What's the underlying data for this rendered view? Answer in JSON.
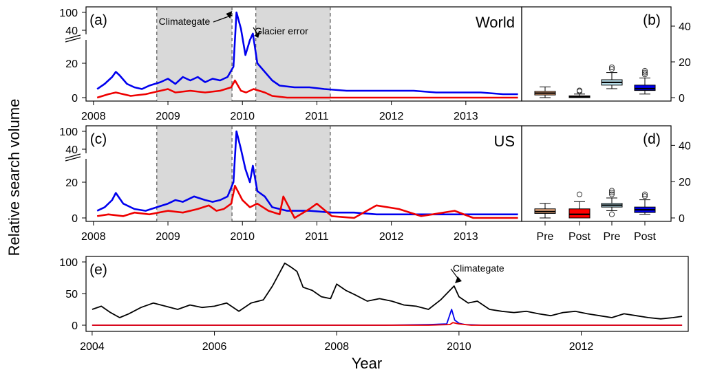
{
  "colors": {
    "world_blue": "#0000ee",
    "red": "#ee0000",
    "black": "#000000",
    "shade": "#d9d9d9",
    "pre_red": "#f4b183",
    "post_red": "#ff0000",
    "pre_blue": "#bde4f0",
    "post_blue": "#0000ee"
  },
  "figure": {
    "ylabel": "Relative search volume",
    "xlabel": "Year"
  },
  "chart_data": [
    {
      "id": "a",
      "panel_label": "(a)",
      "region": "World",
      "type": "line",
      "xlim": [
        2007.9,
        2013.75
      ],
      "ylim": [
        0,
        100
      ],
      "y_break": "axis break between 20 and 40",
      "x_ticks": [
        "2008",
        "2009",
        "2010",
        "2011",
        "2012",
        "2013"
      ],
      "y_ticks": [
        "0",
        "20",
        "40",
        "100"
      ],
      "shaded_periods": [
        [
          2008.85,
          2009.86
        ],
        [
          2010.18,
          2011.18
        ]
      ],
      "annotations": [
        {
          "text": "Climategate",
          "x": 2009.9
        },
        {
          "text": "Glacier error",
          "x": 2010.12
        }
      ],
      "series": [
        {
          "color": "blue",
          "x": [
            2008.05,
            2008.15,
            2008.25,
            2008.3,
            2008.35,
            2008.45,
            2008.55,
            2008.65,
            2008.75,
            2008.9,
            2009.0,
            2009.1,
            2009.2,
            2009.3,
            2009.4,
            2009.5,
            2009.6,
            2009.7,
            2009.8,
            2009.88,
            2009.92,
            2009.98,
            2010.04,
            2010.1,
            2010.14,
            2010.2,
            2010.3,
            2010.4,
            2010.5,
            2010.7,
            2010.9,
            2011.1,
            2011.4,
            2011.7,
            2012.0,
            2012.3,
            2012.6,
            2012.9,
            2013.2,
            2013.5,
            2013.7
          ],
          "y": [
            5,
            8,
            12,
            15,
            13,
            8,
            6,
            5,
            7,
            9,
            11,
            8,
            12,
            10,
            12,
            9,
            11,
            10,
            12,
            18,
            100,
            45,
            25,
            34,
            38,
            20,
            15,
            10,
            7,
            6,
            6,
            5,
            4,
            4,
            4,
            4,
            3,
            3,
            3,
            2,
            2
          ]
        },
        {
          "color": "red",
          "x": [
            2008.05,
            2008.2,
            2008.3,
            2008.5,
            2008.7,
            2008.9,
            2009.0,
            2009.1,
            2009.3,
            2009.5,
            2009.7,
            2009.85,
            2009.9,
            2009.98,
            2010.05,
            2010.15,
            2010.3,
            2010.4,
            2010.6,
            2011.0,
            2011.5,
            2012.0,
            2012.5,
            2013.0,
            2013.5,
            2013.7
          ],
          "y": [
            0,
            2,
            3,
            1,
            2,
            4,
            5,
            3,
            4,
            3,
            4,
            6,
            10,
            4,
            3,
            5,
            3,
            1,
            0,
            0,
            0,
            0,
            0,
            0,
            0,
            0
          ]
        }
      ]
    },
    {
      "id": "b",
      "panel_label": "(b)",
      "type": "box",
      "ylim": [
        0,
        50
      ],
      "y_ticks": [
        "0",
        "20",
        "40"
      ],
      "boxes": [
        {
          "color": "pre_red",
          "q1": 1.5,
          "median": 2.5,
          "q3": 3.5,
          "whisker_low": 0,
          "whisker_high": 6,
          "outliers": []
        },
        {
          "color": "post_red",
          "q1": 0,
          "median": 0.5,
          "q3": 1,
          "whisker_low": 0,
          "whisker_high": 2,
          "outliers": [
            3.5,
            4
          ]
        },
        {
          "color": "pre_blue",
          "q1": 7,
          "median": 8.5,
          "q3": 10,
          "whisker_low": 5,
          "whisker_high": 14,
          "outliers": [
            16,
            17
          ]
        },
        {
          "color": "post_blue",
          "q1": 4,
          "median": 5,
          "q3": 7,
          "whisker_low": 2,
          "whisker_high": 11,
          "outliers": [
            13,
            14,
            15
          ]
        }
      ]
    },
    {
      "id": "c",
      "panel_label": "(c)",
      "region": "US",
      "type": "line",
      "xlim": [
        2007.9,
        2013.75
      ],
      "ylim": [
        0,
        100
      ],
      "y_break": "axis break between 20 and 40",
      "x_ticks": [
        "2008",
        "2009",
        "2010",
        "2011",
        "2012",
        "2013"
      ],
      "y_ticks": [
        "0",
        "20",
        "40",
        "100"
      ],
      "shaded_periods": [
        [
          2008.85,
          2009.86
        ],
        [
          2010.18,
          2011.18
        ]
      ],
      "series": [
        {
          "color": "blue",
          "x": [
            2008.05,
            2008.15,
            2008.25,
            2008.3,
            2008.4,
            2008.55,
            2008.7,
            2008.85,
            2009.0,
            2009.1,
            2009.2,
            2009.35,
            2009.5,
            2009.6,
            2009.7,
            2009.8,
            2009.88,
            2009.92,
            2009.98,
            2010.04,
            2010.1,
            2010.14,
            2010.2,
            2010.3,
            2010.4,
            2010.6,
            2010.9,
            2011.2,
            2011.5,
            2011.8,
            2012.1,
            2012.4,
            2012.7,
            2013.0,
            2013.3,
            2013.7
          ],
          "y": [
            4,
            6,
            10,
            14,
            8,
            5,
            4,
            6,
            8,
            10,
            9,
            12,
            10,
            9,
            10,
            12,
            20,
            100,
            40,
            28,
            20,
            30,
            15,
            12,
            6,
            4,
            4,
            3,
            3,
            2,
            2,
            2,
            2,
            2,
            2,
            2
          ]
        },
        {
          "color": "red",
          "x": [
            2008.05,
            2008.2,
            2008.4,
            2008.55,
            2008.75,
            2009.0,
            2009.2,
            2009.4,
            2009.55,
            2009.65,
            2009.75,
            2009.85,
            2009.9,
            2010.0,
            2010.1,
            2010.2,
            2010.35,
            2010.5,
            2010.55,
            2010.7,
            2010.9,
            2011.0,
            2011.2,
            2011.5,
            2011.8,
            2012.1,
            2012.4,
            2012.85,
            2013.1,
            2013.7
          ],
          "y": [
            1,
            2,
            1,
            3,
            2,
            4,
            3,
            5,
            7,
            4,
            5,
            8,
            18,
            10,
            6,
            8,
            4,
            2,
            12,
            0,
            5,
            8,
            1,
            0,
            7,
            5,
            1,
            4,
            0,
            0
          ]
        }
      ]
    },
    {
      "id": "d",
      "panel_label": "(d)",
      "type": "box",
      "ylim": [
        0,
        50
      ],
      "y_ticks": [
        "0",
        "20",
        "40"
      ],
      "x_ticks": [
        "Pre",
        "Post",
        "Pre",
        "Post"
      ],
      "boxes": [
        {
          "color": "pre_red",
          "q1": 2.5,
          "median": 3.5,
          "q3": 5,
          "whisker_low": 0,
          "whisker_high": 8,
          "outliers": []
        },
        {
          "color": "post_red",
          "q1": 0,
          "median": 2,
          "q3": 5,
          "whisker_low": 0,
          "whisker_high": 9,
          "outliers": [
            13
          ]
        },
        {
          "color": "pre_blue",
          "q1": 6,
          "median": 7,
          "q3": 8,
          "whisker_low": 4,
          "whisker_high": 11,
          "outliers": [
            2,
            13,
            14,
            15
          ]
        },
        {
          "color": "post_blue",
          "q1": 3,
          "median": 4.5,
          "q3": 6,
          "whisker_low": 2,
          "whisker_high": 10,
          "outliers": [
            12,
            13
          ]
        }
      ]
    },
    {
      "id": "e",
      "panel_label": "(e)",
      "type": "line",
      "xlim": [
        2003.9,
        2013.75
      ],
      "ylim": [
        0,
        100
      ],
      "x_ticks": [
        "2004",
        "2006",
        "2008",
        "2010",
        "2012"
      ],
      "y_ticks": [
        "0",
        "50",
        "100"
      ],
      "annotations": [
        {
          "text": "Climategate",
          "x": 2009.9
        }
      ],
      "series": [
        {
          "color": "black",
          "x": [
            2004.0,
            2004.15,
            2004.3,
            2004.45,
            2004.6,
            2004.8,
            2005.0,
            2005.2,
            2005.4,
            2005.6,
            2005.8,
            2006.0,
            2006.2,
            2006.4,
            2006.6,
            2006.8,
            2006.95,
            2007.05,
            2007.15,
            2007.25,
            2007.35,
            2007.45,
            2007.6,
            2007.75,
            2007.9,
            2008.0,
            2008.15,
            2008.3,
            2008.5,
            2008.7,
            2008.9,
            2009.1,
            2009.3,
            2009.5,
            2009.7,
            2009.85,
            2009.92,
            2010.0,
            2010.15,
            2010.3,
            2010.5,
            2010.7,
            2010.9,
            2011.1,
            2011.3,
            2011.5,
            2011.7,
            2011.9,
            2012.1,
            2012.3,
            2012.5,
            2012.7,
            2012.9,
            2013.1,
            2013.3,
            2013.5,
            2013.65
          ],
          "y": [
            25,
            30,
            20,
            12,
            18,
            28,
            35,
            30,
            25,
            32,
            28,
            30,
            35,
            22,
            35,
            40,
            62,
            80,
            98,
            92,
            85,
            60,
            55,
            45,
            42,
            65,
            55,
            48,
            38,
            42,
            38,
            32,
            30,
            25,
            40,
            55,
            62,
            45,
            35,
            38,
            25,
            22,
            20,
            22,
            18,
            15,
            20,
            22,
            18,
            15,
            12,
            18,
            15,
            12,
            10,
            12,
            14
          ]
        },
        {
          "color": "blue",
          "x": [
            2004.0,
            2008.8,
            2009.5,
            2009.8,
            2009.88,
            2009.93,
            2010.0,
            2010.1,
            2010.4,
            2013.65
          ],
          "y": [
            0,
            0,
            1,
            2,
            25,
            8,
            3,
            1,
            0,
            0
          ]
        },
        {
          "color": "red",
          "x": [
            2004.0,
            2009.5,
            2009.85,
            2009.9,
            2010.0,
            2010.2,
            2013.65
          ],
          "y": [
            0,
            0,
            1,
            4,
            2,
            0,
            0
          ]
        }
      ]
    }
  ]
}
